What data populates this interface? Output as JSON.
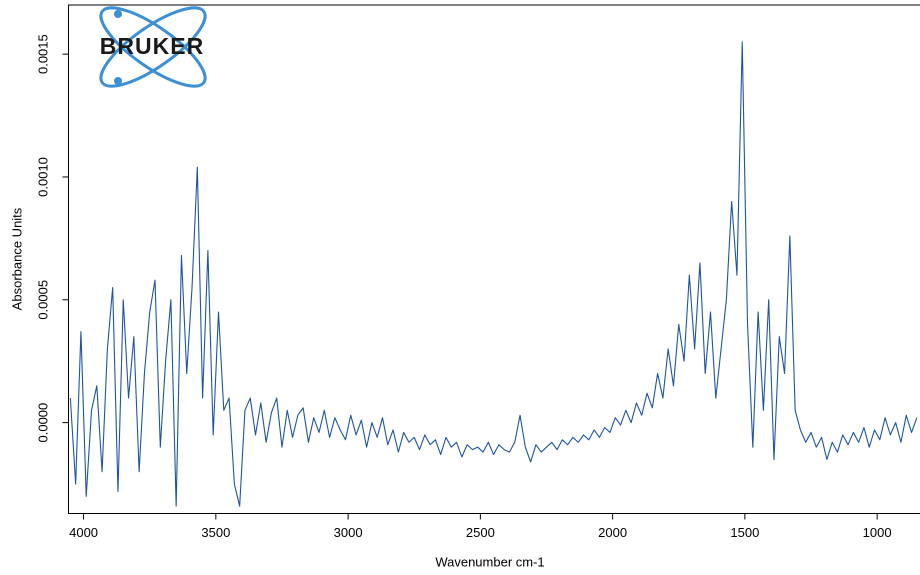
{
  "chart_data": {
    "type": "line",
    "logo": "BRUKER",
    "x_label": "Wavenumber cm-1",
    "y_label": "Absorbance Units",
    "color": "#1f55a0",
    "xlim": [
      4057,
      838
    ],
    "ylim": [
      -0.00037,
      0.0017
    ],
    "xticks": [
      4000,
      3500,
      3000,
      2500,
      2000,
      1500,
      1000
    ],
    "yticks": [
      {
        "value": 0,
        "label": "0.0000"
      },
      {
        "value": 0.0005,
        "label": "0.0005"
      },
      {
        "value": 0.001,
        "label": "0.0010"
      },
      {
        "value": 0.0015,
        "label": "0.0015"
      }
    ],
    "x": [
      4050,
      4030,
      4010,
      3990,
      3970,
      3950,
      3930,
      3910,
      3890,
      3870,
      3850,
      3830,
      3810,
      3790,
      3770,
      3750,
      3730,
      3710,
      3690,
      3670,
      3650,
      3630,
      3610,
      3590,
      3570,
      3550,
      3530,
      3510,
      3490,
      3470,
      3450,
      3430,
      3410,
      3390,
      3370,
      3350,
      3330,
      3310,
      3290,
      3270,
      3250,
      3230,
      3210,
      3190,
      3170,
      3150,
      3130,
      3110,
      3090,
      3070,
      3050,
      3030,
      3010,
      2990,
      2970,
      2950,
      2930,
      2910,
      2890,
      2870,
      2850,
      2830,
      2810,
      2790,
      2770,
      2750,
      2730,
      2710,
      2690,
      2670,
      2650,
      2630,
      2610,
      2590,
      2570,
      2550,
      2530,
      2510,
      2490,
      2470,
      2450,
      2430,
      2410,
      2390,
      2370,
      2350,
      2330,
      2310,
      2290,
      2270,
      2250,
      2230,
      2210,
      2190,
      2170,
      2150,
      2130,
      2110,
      2090,
      2070,
      2050,
      2030,
      2010,
      1990,
      1970,
      1950,
      1930,
      1910,
      1890,
      1870,
      1850,
      1830,
      1810,
      1790,
      1770,
      1750,
      1730,
      1710,
      1690,
      1670,
      1650,
      1630,
      1610,
      1590,
      1570,
      1550,
      1530,
      1510,
      1490,
      1470,
      1450,
      1430,
      1410,
      1390,
      1370,
      1350,
      1330,
      1310,
      1290,
      1270,
      1250,
      1230,
      1210,
      1190,
      1170,
      1150,
      1130,
      1110,
      1090,
      1070,
      1050,
      1030,
      1010,
      990,
      970,
      950,
      930,
      910,
      890,
      870,
      850
    ],
    "values": [
      0.0001,
      -0.00025,
      0.00037,
      -0.0003,
      5e-05,
      0.00015,
      -0.0002,
      0.0003,
      0.00055,
      -0.00028,
      0.0005,
      0.0001,
      0.00035,
      -0.0002,
      0.0002,
      0.00045,
      0.00058,
      -0.0001,
      0.00025,
      0.0005,
      -0.00034,
      0.00068,
      0.0002,
      0.00055,
      0.00104,
      0.0001,
      0.0007,
      -5e-05,
      0.00045,
      5e-05,
      0.0001,
      -0.00025,
      -0.00034,
      5e-05,
      0.0001,
      -5e-05,
      8e-05,
      -8e-05,
      4e-05,
      0.0001,
      -0.0001,
      5e-05,
      -6e-05,
      3e-05,
      6e-05,
      -8e-05,
      2e-05,
      -4e-05,
      5e-05,
      -6e-05,
      2e-05,
      -3e-05,
      -7e-05,
      3e-05,
      -5e-05,
      1e-05,
      -0.0001,
      0,
      -6e-05,
      2e-05,
      -9e-05,
      -3e-05,
      -0.00012,
      -4e-05,
      -8e-05,
      -6e-05,
      -0.00011,
      -5e-05,
      -9e-05,
      -7e-05,
      -0.00013,
      -6e-05,
      -0.0001,
      -8e-05,
      -0.00014,
      -9e-05,
      -0.00011,
      -0.0001,
      -0.00012,
      -8e-05,
      -0.00013,
      -9e-05,
      -0.00011,
      -0.00012,
      -8e-05,
      3e-05,
      -0.0001,
      -0.00016,
      -9e-05,
      -0.00012,
      -0.0001,
      -8e-05,
      -0.00011,
      -7e-05,
      -9e-05,
      -6e-05,
      -8e-05,
      -5e-05,
      -7e-05,
      -3e-05,
      -6e-05,
      -2e-05,
      -4e-05,
      2e-05,
      -1e-05,
      5e-05,
      0,
      8e-05,
      3e-05,
      0.00012,
      6e-05,
      0.0002,
      0.0001,
      0.0003,
      0.00015,
      0.0004,
      0.00025,
      0.0006,
      0.0003,
      0.00065,
      0.0002,
      0.00045,
      0.0001,
      0.0003,
      0.0005,
      0.0009,
      0.0006,
      0.00155,
      0.0004,
      -0.0001,
      0.00045,
      5e-05,
      0.0005,
      -0.00015,
      0.00035,
      0.0002,
      0.00076,
      5e-05,
      -3e-05,
      -8e-05,
      -4e-05,
      -0.0001,
      -6e-05,
      -0.00015,
      -8e-05,
      -0.00012,
      -5e-05,
      -9e-05,
      -4e-05,
      -8e-05,
      -2e-05,
      -0.0001,
      -3e-05,
      -7e-05,
      2e-05,
      -5e-05,
      0,
      -8e-05,
      3e-05,
      -4e-05,
      2e-05
    ]
  }
}
